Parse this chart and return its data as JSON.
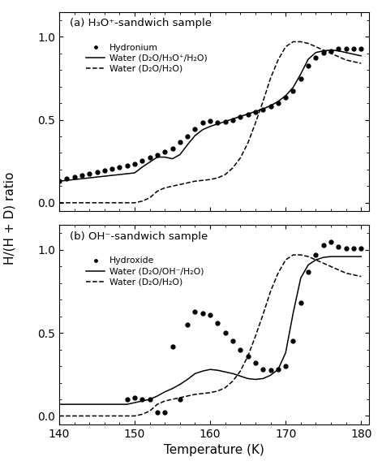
{
  "title_a": "(a) H₃O⁺-sandwich sample",
  "title_b": "(b) OH⁻-sandwich sample",
  "xlabel": "Temperature (K)",
  "ylabel": "H/(H + D) ratio",
  "xlim": [
    140,
    181
  ],
  "ylim_a": [
    -0.05,
    1.15
  ],
  "ylim_b": [
    -0.05,
    1.15
  ],
  "xticks": [
    140,
    150,
    160,
    170,
    180
  ],
  "yticks_a": [
    0.0,
    0.5,
    1.0
  ],
  "yticks_b": [
    0.0,
    0.5,
    1.0
  ],
  "hydronium_dots": {
    "x": [
      140,
      141,
      142,
      143,
      144,
      145,
      146,
      147,
      148,
      149,
      150,
      151,
      152,
      153,
      154,
      155,
      156,
      157,
      158,
      159,
      160,
      161,
      162,
      163,
      164,
      165,
      166,
      167,
      168,
      169,
      170,
      171,
      172,
      173,
      174,
      175,
      176,
      177,
      178,
      179,
      180
    ],
    "y": [
      0.13,
      0.145,
      0.155,
      0.165,
      0.175,
      0.185,
      0.195,
      0.205,
      0.215,
      0.225,
      0.235,
      0.255,
      0.275,
      0.29,
      0.305,
      0.325,
      0.365,
      0.4,
      0.445,
      0.485,
      0.495,
      0.485,
      0.49,
      0.5,
      0.515,
      0.53,
      0.545,
      0.56,
      0.58,
      0.6,
      0.635,
      0.675,
      0.745,
      0.825,
      0.875,
      0.905,
      0.915,
      0.93,
      0.93,
      0.93,
      0.93
    ]
  },
  "water_solid_a": {
    "x": [
      140,
      141,
      142,
      143,
      144,
      145,
      146,
      147,
      148,
      149,
      150,
      151,
      152,
      153,
      154,
      155,
      156,
      157,
      158,
      159,
      160,
      161,
      162,
      163,
      164,
      165,
      166,
      167,
      168,
      169,
      170,
      171,
      172,
      173,
      174,
      175,
      176,
      177,
      178,
      179,
      180
    ],
    "y": [
      0.13,
      0.135,
      0.14,
      0.145,
      0.15,
      0.155,
      0.16,
      0.165,
      0.17,
      0.175,
      0.18,
      0.215,
      0.245,
      0.275,
      0.275,
      0.265,
      0.29,
      0.35,
      0.405,
      0.44,
      0.46,
      0.475,
      0.49,
      0.505,
      0.52,
      0.535,
      0.55,
      0.565,
      0.585,
      0.61,
      0.645,
      0.695,
      0.775,
      0.865,
      0.905,
      0.915,
      0.92,
      0.915,
      0.905,
      0.895,
      0.885
    ]
  },
  "water_dashed_a": {
    "x": [
      140,
      141,
      142,
      143,
      144,
      145,
      146,
      147,
      148,
      149,
      150,
      151,
      152,
      153,
      154,
      155,
      156,
      157,
      158,
      159,
      160,
      161,
      162,
      163,
      164,
      165,
      166,
      167,
      168,
      169,
      170,
      171,
      172,
      173,
      174,
      175,
      176,
      177,
      178,
      179,
      180
    ],
    "y": [
      0.0,
      0.0,
      0.0,
      0.0,
      0.0,
      0.0,
      0.0,
      0.0,
      0.0,
      0.0,
      0.0,
      0.01,
      0.03,
      0.07,
      0.09,
      0.1,
      0.11,
      0.12,
      0.13,
      0.135,
      0.14,
      0.15,
      0.17,
      0.21,
      0.27,
      0.36,
      0.48,
      0.61,
      0.75,
      0.86,
      0.94,
      0.97,
      0.97,
      0.96,
      0.94,
      0.92,
      0.9,
      0.88,
      0.86,
      0.85,
      0.84
    ]
  },
  "hydroxide_dots": {
    "x": [
      149,
      150,
      151,
      152,
      153,
      154,
      155,
      156,
      157,
      158,
      159,
      160,
      161,
      162,
      163,
      164,
      165,
      166,
      167,
      168,
      169,
      170,
      171,
      172,
      173,
      174,
      175,
      176,
      177,
      178,
      179,
      180
    ],
    "y": [
      0.1,
      0.11,
      0.1,
      0.1,
      0.02,
      0.02,
      0.42,
      0.1,
      0.55,
      0.63,
      0.62,
      0.61,
      0.56,
      0.5,
      0.45,
      0.4,
      0.36,
      0.32,
      0.28,
      0.275,
      0.28,
      0.3,
      0.45,
      0.68,
      0.87,
      0.97,
      1.03,
      1.05,
      1.02,
      1.01,
      1.01,
      1.01
    ]
  },
  "water_solid_b": {
    "x": [
      140,
      141,
      142,
      143,
      144,
      145,
      146,
      147,
      148,
      149,
      150,
      151,
      152,
      153,
      154,
      155,
      156,
      157,
      158,
      159,
      160,
      161,
      162,
      163,
      164,
      165,
      166,
      167,
      168,
      169,
      170,
      171,
      172,
      173,
      174,
      175,
      176,
      177,
      178,
      179,
      180
    ],
    "y": [
      0.07,
      0.07,
      0.07,
      0.07,
      0.07,
      0.07,
      0.07,
      0.07,
      0.07,
      0.07,
      0.08,
      0.09,
      0.1,
      0.12,
      0.145,
      0.165,
      0.19,
      0.22,
      0.255,
      0.27,
      0.28,
      0.275,
      0.265,
      0.255,
      0.24,
      0.225,
      0.22,
      0.225,
      0.245,
      0.28,
      0.38,
      0.62,
      0.83,
      0.91,
      0.94,
      0.955,
      0.96,
      0.96,
      0.96,
      0.96,
      0.96
    ]
  },
  "water_dashed_b": {
    "x": [
      140,
      141,
      142,
      143,
      144,
      145,
      146,
      147,
      148,
      149,
      150,
      151,
      152,
      153,
      154,
      155,
      156,
      157,
      158,
      159,
      160,
      161,
      162,
      163,
      164,
      165,
      166,
      167,
      168,
      169,
      170,
      171,
      172,
      173,
      174,
      175,
      176,
      177,
      178,
      179,
      180
    ],
    "y": [
      0.0,
      0.0,
      0.0,
      0.0,
      0.0,
      0.0,
      0.0,
      0.0,
      0.0,
      0.0,
      0.0,
      0.01,
      0.03,
      0.07,
      0.09,
      0.1,
      0.11,
      0.12,
      0.13,
      0.135,
      0.14,
      0.15,
      0.17,
      0.21,
      0.27,
      0.36,
      0.48,
      0.61,
      0.75,
      0.86,
      0.94,
      0.97,
      0.97,
      0.96,
      0.94,
      0.92,
      0.9,
      0.88,
      0.86,
      0.85,
      0.84
    ]
  },
  "legend_a": {
    "hydronium": "Hydronium",
    "water_solid": "Water (D₂O/H₃O⁺/H₂O)",
    "water_dashed": "Water (D₂O/H₂O)"
  },
  "legend_b": {
    "hydroxide": "Hydroxide",
    "water_solid": "Water (D₂O/OH⁻/H₂O)",
    "water_dashed": "Water (D₂O/H₂O)"
  }
}
